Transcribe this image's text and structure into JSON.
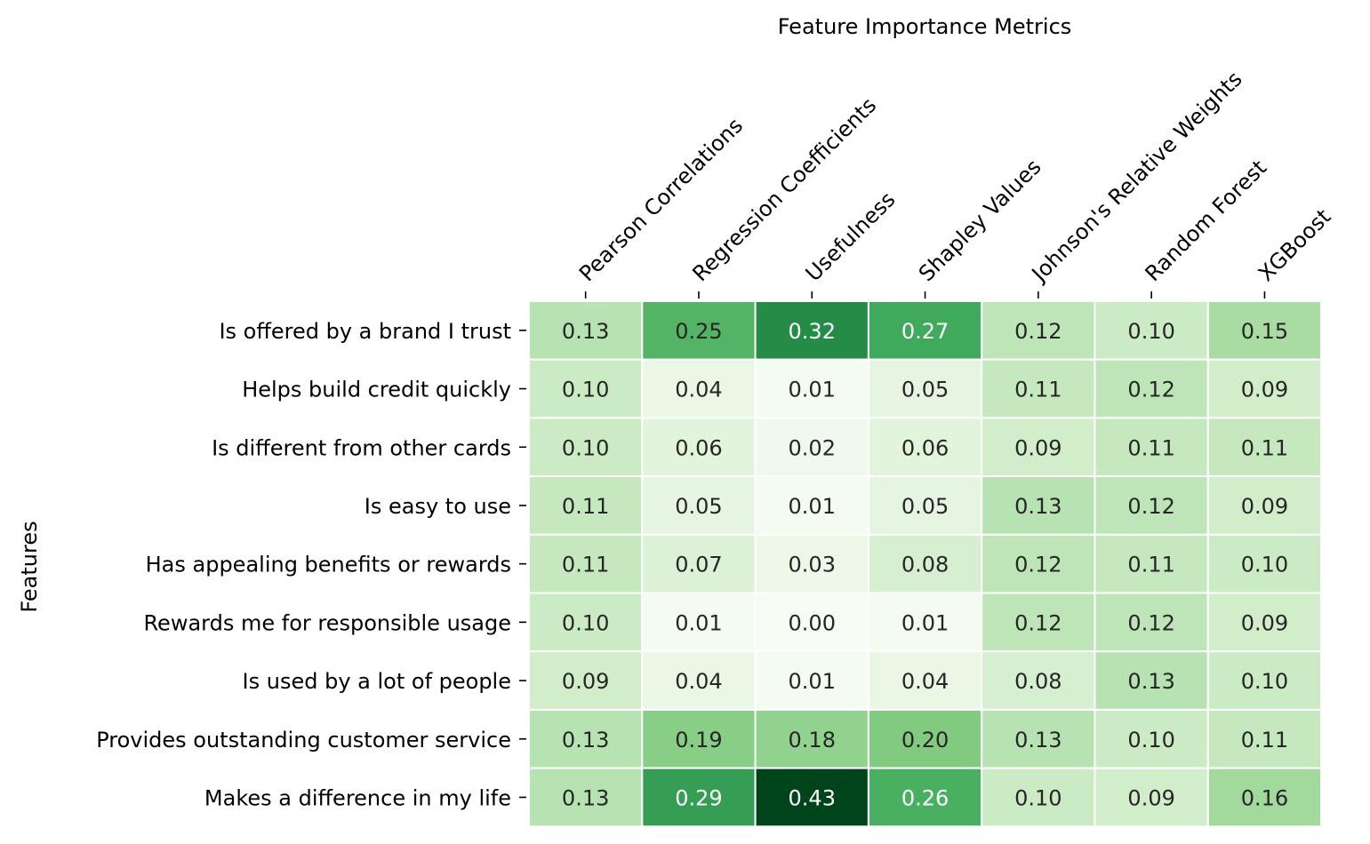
{
  "chart_data": {
    "type": "heatmap",
    "title": "Feature Importance Metrics",
    "xlabel": "Feature Importance Metrics",
    "ylabel": "Features",
    "colormap": "Greens",
    "value_range": [
      0.0,
      0.43
    ],
    "grid": false,
    "legend": "none",
    "columns": [
      "Pearson Correlations",
      "Regression Coefficients",
      "Usefulness",
      "Shapley Values",
      "Johnson's Relative Weights",
      "Random Forest",
      "XGBoost"
    ],
    "rows": [
      "Is offered by a brand I trust",
      "Helps build credit quickly",
      "Is different from other cards",
      "Is easy to use",
      "Has appealing benefits or rewards",
      "Rewards me for responsible usage",
      "Is used by a lot of people",
      "Provides outstanding customer service",
      "Makes a difference in my life"
    ],
    "values": [
      [
        0.13,
        0.25,
        0.32,
        0.27,
        0.12,
        0.1,
        0.15
      ],
      [
        0.1,
        0.04,
        0.01,
        0.05,
        0.11,
        0.12,
        0.09
      ],
      [
        0.1,
        0.06,
        0.02,
        0.06,
        0.09,
        0.11,
        0.11
      ],
      [
        0.11,
        0.05,
        0.01,
        0.05,
        0.13,
        0.12,
        0.09
      ],
      [
        0.11,
        0.07,
        0.03,
        0.08,
        0.12,
        0.11,
        0.1
      ],
      [
        0.1,
        0.01,
        0.0,
        0.01,
        0.12,
        0.12,
        0.09
      ],
      [
        0.09,
        0.04,
        0.01,
        0.04,
        0.08,
        0.13,
        0.1
      ],
      [
        0.13,
        0.19,
        0.18,
        0.2,
        0.13,
        0.1,
        0.11
      ],
      [
        0.13,
        0.29,
        0.43,
        0.26,
        0.1,
        0.09,
        0.16
      ]
    ],
    "value_labels": [
      [
        "0.13",
        "0.25",
        "0.32",
        "0.27",
        "0.12",
        "0.10",
        "0.15"
      ],
      [
        "0.10",
        "0.04",
        "0.01",
        "0.05",
        "0.11",
        "0.12",
        "0.09"
      ],
      [
        "0.10",
        "0.06",
        "0.02",
        "0.06",
        "0.09",
        "0.11",
        "0.11"
      ],
      [
        "0.11",
        "0.05",
        "0.01",
        "0.05",
        "0.13",
        "0.12",
        "0.09"
      ],
      [
        "0.11",
        "0.07",
        "0.03",
        "0.08",
        "0.12",
        "0.11",
        "0.10"
      ],
      [
        "0.10",
        "0.01",
        "0.00",
        "0.01",
        "0.12",
        "0.12",
        "0.09"
      ],
      [
        "0.09",
        "0.04",
        "0.01",
        "0.04",
        "0.08",
        "0.13",
        "0.10"
      ],
      [
        "0.13",
        "0.19",
        "0.18",
        "0.20",
        "0.13",
        "0.10",
        "0.11"
      ],
      [
        "0.13",
        "0.29",
        "0.43",
        "0.26",
        "0.10",
        "0.09",
        "0.16"
      ]
    ]
  }
}
